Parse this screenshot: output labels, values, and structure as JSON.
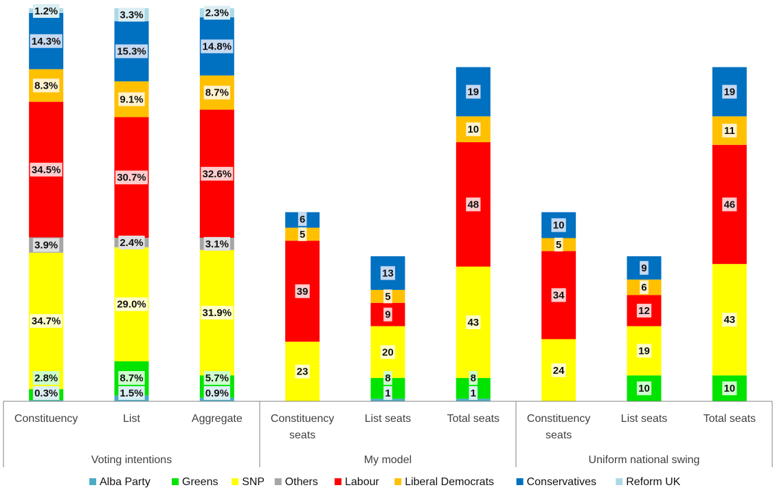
{
  "chart_data": {
    "type": "bar",
    "stacked": true,
    "groups": [
      {
        "name": "Voting intentions",
        "categories": [
          "Constituency",
          "List",
          "Aggregate"
        ]
      },
      {
        "name": "My model",
        "categories": [
          "Constituency seats",
          "List seats",
          "Total seats"
        ]
      },
      {
        "name": "Uniform national swing",
        "categories": [
          "Constituency seats",
          "List seats",
          "Total seats"
        ]
      }
    ],
    "series": [
      {
        "name": "Alba Party",
        "color": "#4BACC6",
        "values": [
          0.3,
          1.5,
          0.9,
          0,
          1,
          1,
          0,
          0,
          0
        ],
        "labels": [
          "0.3%",
          "1.5%",
          "0.9%",
          "",
          "1",
          "1",
          "",
          "",
          ""
        ]
      },
      {
        "name": "Greens",
        "color": "#00E400",
        "values": [
          2.8,
          8.7,
          5.7,
          0,
          8,
          8,
          0,
          10,
          10
        ],
        "labels": [
          "2.8%",
          "8.7%",
          "5.7%",
          "",
          "8",
          "8",
          "",
          "10",
          "10"
        ]
      },
      {
        "name": "SNP",
        "color": "#FFFF00",
        "values": [
          34.7,
          29.0,
          31.9,
          23,
          20,
          43,
          24,
          19,
          43
        ],
        "labels": [
          "34.7%",
          "29.0%",
          "31.9%",
          "23",
          "20",
          "43",
          "24",
          "19",
          "43"
        ]
      },
      {
        "name": "Others",
        "color": "#A6A6A6",
        "values": [
          3.9,
          2.4,
          3.1,
          0,
          0,
          0,
          0,
          0,
          0
        ],
        "labels": [
          "3.9%",
          "2.4%",
          "3.1%",
          "",
          "",
          "",
          "",
          "",
          ""
        ]
      },
      {
        "name": "Labour",
        "color": "#FF0000",
        "values": [
          34.5,
          30.7,
          32.6,
          39,
          9,
          48,
          34,
          12,
          46
        ],
        "labels": [
          "34.5%",
          "30.7%",
          "32.6%",
          "39",
          "9",
          "48",
          "34",
          "12",
          "46"
        ]
      },
      {
        "name": "Liberal Democrats",
        "color": "#FFC000",
        "values": [
          8.3,
          9.1,
          8.7,
          5,
          5,
          10,
          5,
          6,
          11
        ],
        "labels": [
          "8.3%",
          "9.1%",
          "8.7%",
          "5",
          "5",
          "10",
          "5",
          "6",
          "11"
        ]
      },
      {
        "name": "Conservatives",
        "color": "#0070C0",
        "values": [
          14.3,
          15.3,
          14.8,
          6,
          13,
          19,
          10,
          9,
          19
        ],
        "labels": [
          "14.3%",
          "15.3%",
          "14.8%",
          "6",
          "13",
          "19",
          "10",
          "9",
          "19"
        ]
      },
      {
        "name": "Reform UK",
        "color": "#ADD8E6",
        "values": [
          1.2,
          3.3,
          2.3,
          0,
          0,
          0,
          0,
          0,
          0
        ],
        "labels": [
          "1.2%",
          "3.3%",
          "2.3%",
          "",
          "",
          "",
          "",
          "",
          ""
        ]
      }
    ],
    "label_bg": {
      "Alba Party": "#DAEEF3",
      "Greens": "#CCFFCC",
      "SNP": "#FFFFCC",
      "Others": "#E0E0E0",
      "Labour": "#FFCCCC",
      "Liberal Democrats": "#FFF2CC",
      "Conservatives": "#C5D9F1",
      "Reform UK": "#DAEEF3"
    },
    "legend_position": "bottom",
    "grid": false
  }
}
